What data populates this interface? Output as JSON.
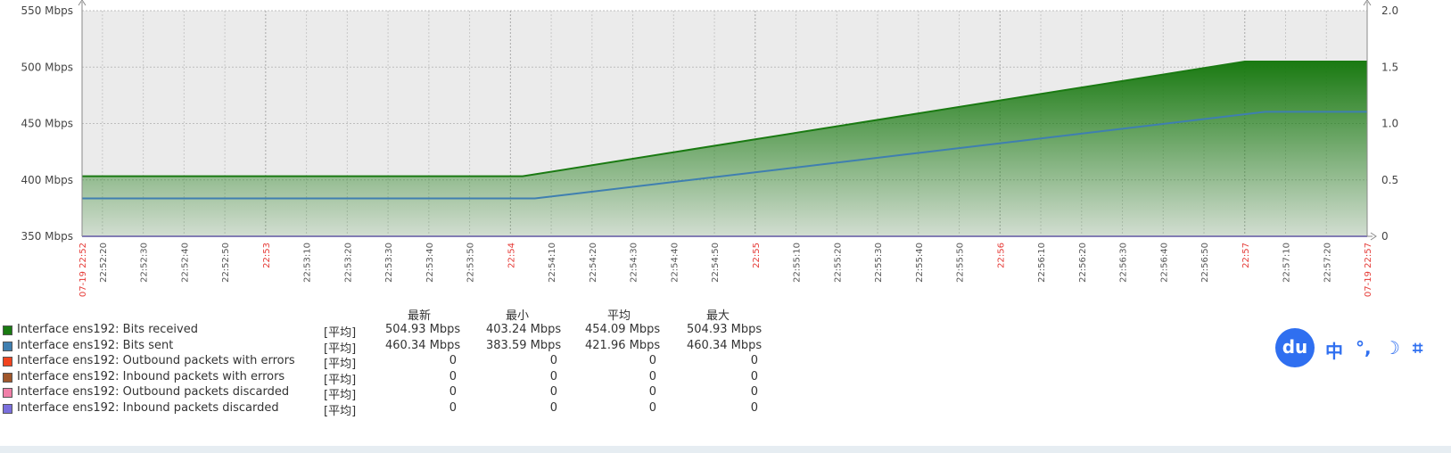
{
  "chart_data": {
    "type": "area",
    "y_left": {
      "min": 350,
      "max": 550,
      "ticks": [
        "350 Mbps",
        "400 Mbps",
        "450 Mbps",
        "500 Mbps",
        "550 Mbps"
      ],
      "tick_values": [
        350,
        400,
        450,
        500,
        550
      ]
    },
    "y_right": {
      "min": 0,
      "max": 2.0,
      "ticks": [
        "0",
        "0.5",
        "1.0",
        "1.5",
        "2.0"
      ],
      "tick_values": [
        0,
        0.5,
        1.0,
        1.5,
        2.0
      ]
    },
    "x_start_label": "07-19 22:52",
    "x_end_label": "07-19 22:57",
    "x_ticks": [
      {
        "t": 20,
        "label": "22:52:20",
        "major": false
      },
      {
        "t": 30,
        "label": "22:52:30",
        "major": false
      },
      {
        "t": 40,
        "label": "22:52:40",
        "major": false
      },
      {
        "t": 50,
        "label": "22:52:50",
        "major": false
      },
      {
        "t": 60,
        "label": "22:53",
        "major": true
      },
      {
        "t": 70,
        "label": "22:53:10",
        "major": false
      },
      {
        "t": 80,
        "label": "22:53:20",
        "major": false
      },
      {
        "t": 90,
        "label": "22:53:30",
        "major": false
      },
      {
        "t": 100,
        "label": "22:53:40",
        "major": false
      },
      {
        "t": 110,
        "label": "22:53:50",
        "major": false
      },
      {
        "t": 120,
        "label": "22:54",
        "major": true
      },
      {
        "t": 130,
        "label": "22:54:10",
        "major": false
      },
      {
        "t": 140,
        "label": "22:54:20",
        "major": false
      },
      {
        "t": 150,
        "label": "22:54:30",
        "major": false
      },
      {
        "t": 160,
        "label": "22:54:40",
        "major": false
      },
      {
        "t": 170,
        "label": "22:54:50",
        "major": false
      },
      {
        "t": 180,
        "label": "22:55",
        "major": true
      },
      {
        "t": 190,
        "label": "22:55:10",
        "major": false
      },
      {
        "t": 200,
        "label": "22:55:20",
        "major": false
      },
      {
        "t": 210,
        "label": "22:55:30",
        "major": false
      },
      {
        "t": 220,
        "label": "22:55:40",
        "major": false
      },
      {
        "t": 230,
        "label": "22:55:50",
        "major": false
      },
      {
        "t": 240,
        "label": "22:56",
        "major": true
      },
      {
        "t": 250,
        "label": "22:56:10",
        "major": false
      },
      {
        "t": 260,
        "label": "22:56:20",
        "major": false
      },
      {
        "t": 270,
        "label": "22:56:30",
        "major": false
      },
      {
        "t": 280,
        "label": "22:56:40",
        "major": false
      },
      {
        "t": 290,
        "label": "22:56:50",
        "major": false
      },
      {
        "t": 300,
        "label": "22:57",
        "major": true
      },
      {
        "t": 310,
        "label": "22:57:10",
        "major": false
      },
      {
        "t": 320,
        "label": "22:57:20",
        "major": false
      }
    ],
    "x_range": [
      15,
      330
    ],
    "series": [
      {
        "name": "Interface ens192: Bits received",
        "color": "#1a7a12",
        "style": "area",
        "points": [
          [
            15,
            403.24
          ],
          [
            123,
            403.24
          ],
          [
            300,
            504.93
          ],
          [
            330,
            504.93
          ]
        ]
      },
      {
        "name": "Interface ens192: Bits sent",
        "color": "#3f7fb0",
        "style": "line",
        "points": [
          [
            15,
            383.59
          ],
          [
            126,
            383.59
          ],
          [
            305,
            460.34
          ],
          [
            330,
            460.34
          ]
        ]
      },
      {
        "name": "Interface ens192: Inbound packets discarded",
        "color": "#7a6fdd",
        "style": "line",
        "points": [
          [
            15,
            350
          ],
          [
            330,
            350
          ]
        ]
      }
    ],
    "grid": true
  },
  "legend": {
    "headers": [
      "最新",
      "最小",
      "平均",
      "最大"
    ],
    "rows": [
      {
        "name": "Interface ens192: Bits received",
        "func": "[平均]",
        "last": "504.93 Mbps",
        "min": "403.24 Mbps",
        "avg": "454.09 Mbps",
        "max": "504.93 Mbps",
        "color": "#1a7a12"
      },
      {
        "name": "Interface ens192: Bits sent",
        "func": "[平均]",
        "last": "460.34 Mbps",
        "min": "383.59 Mbps",
        "avg": "421.96 Mbps",
        "max": "460.34 Mbps",
        "color": "#3f7fb0"
      },
      {
        "name": "Interface ens192: Outbound packets with errors",
        "func": "[平均]",
        "last": "0",
        "min": "0",
        "avg": "0",
        "max": "0",
        "color": "#f1441f"
      },
      {
        "name": "Interface ens192: Inbound packets with errors",
        "func": "[平均]",
        "last": "0",
        "min": "0",
        "avg": "0",
        "max": "0",
        "color": "#a0572b"
      },
      {
        "name": "Interface ens192: Outbound packets discarded",
        "func": "[平均]",
        "last": "0",
        "min": "0",
        "avg": "0",
        "max": "0",
        "color": "#f07fa8"
      },
      {
        "name": "Interface ens192: Inbound packets discarded",
        "func": "[平均]",
        "last": "0",
        "min": "0",
        "avg": "0",
        "max": "0",
        "color": "#7a6fdd"
      }
    ]
  },
  "toolbar": {
    "logo": "du",
    "icons": [
      {
        "name": "chinese-mode-icon",
        "glyph": "中"
      },
      {
        "name": "punctuation-icon",
        "glyph": "°,"
      },
      {
        "name": "moon-icon",
        "glyph": "☽"
      },
      {
        "name": "crop-icon",
        "glyph": "⌗"
      }
    ]
  }
}
